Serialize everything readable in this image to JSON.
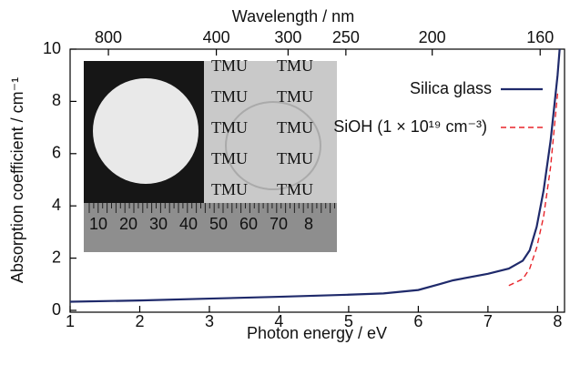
{
  "chart_data": {
    "type": "line",
    "xlabel": "Photon energy / eV",
    "ylabel": "Absorption coefficient / cm⁻¹",
    "x2label": "Wavelength / nm",
    "xlim": [
      1,
      8.1
    ],
    "ylim": [
      0,
      10
    ],
    "xticks": [
      1,
      2,
      3,
      4,
      5,
      6,
      7,
      8
    ],
    "yticks": [
      0,
      2,
      4,
      6,
      8,
      10
    ],
    "x2ticks": [
      {
        "value": 1.55,
        "label": "800"
      },
      {
        "value": 3.1,
        "label": "400"
      },
      {
        "value": 4.13,
        "label": "300"
      },
      {
        "value": 4.96,
        "label": "250"
      },
      {
        "value": 6.2,
        "label": "200"
      },
      {
        "value": 7.75,
        "label": "160"
      }
    ],
    "series": [
      {
        "name": "Silica glass",
        "color": "#1f2a6b",
        "dash": false,
        "x": [
          1,
          2,
          3,
          4,
          5,
          5.5,
          6,
          6.3,
          6.5,
          7,
          7.3,
          7.5,
          7.6,
          7.7,
          7.8,
          7.9,
          8.0,
          8.03
        ],
        "values": [
          0.33,
          0.38,
          0.45,
          0.52,
          0.6,
          0.65,
          0.78,
          1.0,
          1.15,
          1.4,
          1.6,
          1.9,
          2.3,
          3.2,
          4.6,
          6.5,
          9.0,
          10
        ]
      },
      {
        "name": "SiOH (1 × 10¹⁹ cm⁻³)",
        "color": "#e8242a",
        "dash": true,
        "x": [
          7.3,
          7.5,
          7.6,
          7.7,
          7.8,
          7.9,
          8.0
        ],
        "values": [
          0.95,
          1.2,
          1.6,
          2.4,
          3.6,
          5.5,
          8.3
        ]
      }
    ],
    "inset": {
      "sample_text": "TMU",
      "ruler_labels": [
        "10",
        "20",
        "30",
        "40",
        "50",
        "60",
        "70",
        "8"
      ]
    }
  }
}
